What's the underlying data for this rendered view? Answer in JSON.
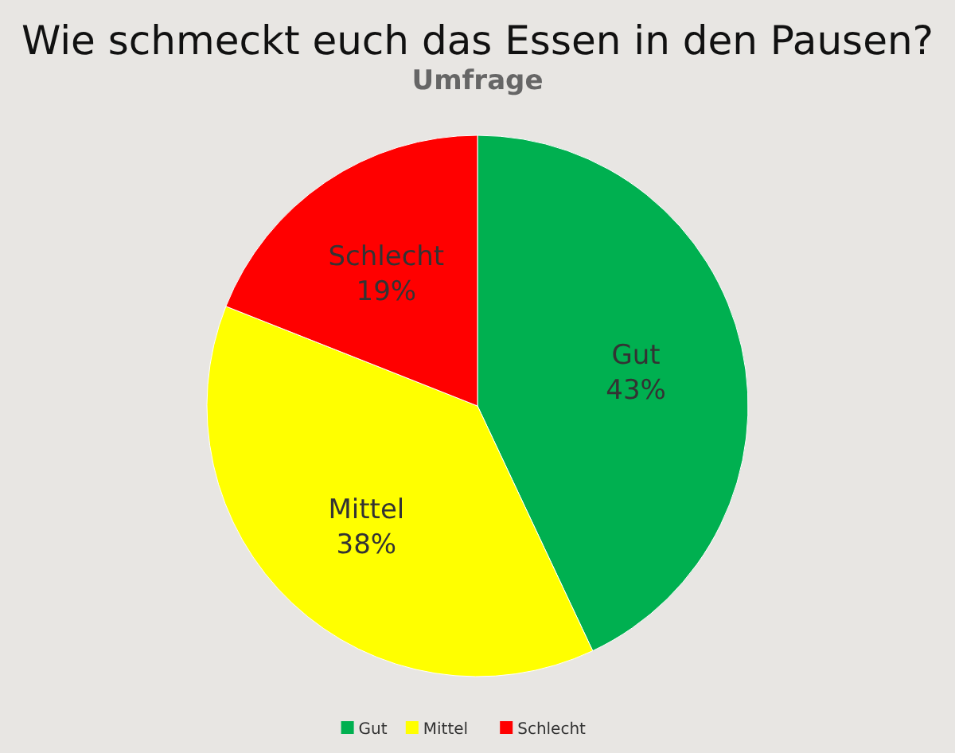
{
  "chart_data": {
    "type": "pie",
    "title": "Wie schmeckt euch das Essen in den Pausen?",
    "subtitle": "Umfrage",
    "categories": [
      "Gut",
      "Mittel",
      "Schlecht"
    ],
    "values": [
      43,
      38,
      19
    ],
    "colors": [
      "#00b050",
      "#ffff00",
      "#ff0000"
    ],
    "value_labels": [
      "43%",
      "38%",
      "19%"
    ],
    "legend": "bottom"
  }
}
